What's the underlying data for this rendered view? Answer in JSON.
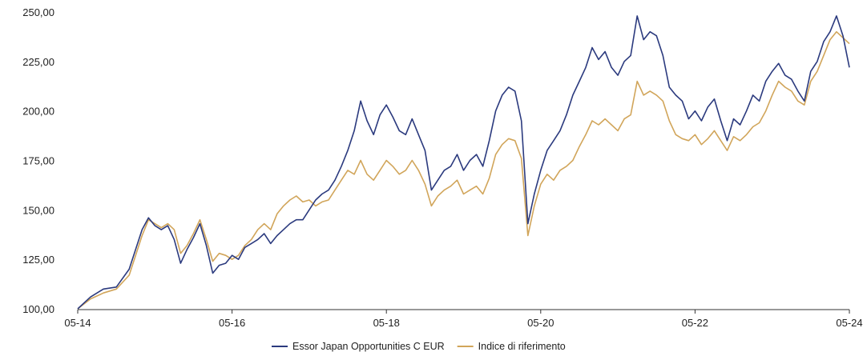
{
  "chart_data": {
    "type": "line",
    "title": "",
    "xlabel": "",
    "ylabel": "",
    "ylim": [
      100,
      250
    ],
    "xlim": [
      "05-14",
      "05-24"
    ],
    "x_ticks": [
      "05-14",
      "05-16",
      "05-18",
      "05-20",
      "05-22",
      "05-24"
    ],
    "y_ticks": [
      "100,00",
      "125,00",
      "150,00",
      "175,00",
      "200,00",
      "225,00",
      "250,00"
    ],
    "grid": false,
    "legend_position": "bottom-center",
    "series": [
      {
        "name": "Essor Japan Opportunities C EUR",
        "color": "#2b3a7e",
        "points": [
          [
            "05-14",
            100
          ],
          [
            "07-14",
            106
          ],
          [
            "09-14",
            110
          ],
          [
            "11-14",
            111
          ],
          [
            "01-15",
            120
          ],
          [
            "03-15",
            140
          ],
          [
            "04-15",
            146
          ],
          [
            "05-15",
            142
          ],
          [
            "06-15",
            140
          ],
          [
            "07-15",
            142
          ],
          [
            "08-15",
            135
          ],
          [
            "09-15",
            123
          ],
          [
            "10-15",
            130
          ],
          [
            "11-15",
            136
          ],
          [
            "12-15",
            143
          ],
          [
            "01-16",
            132
          ],
          [
            "02-16",
            118
          ],
          [
            "03-16",
            122
          ],
          [
            "04-16",
            123
          ],
          [
            "05-16",
            127
          ],
          [
            "06-16",
            125
          ],
          [
            "07-16",
            131
          ],
          [
            "08-16",
            133
          ],
          [
            "09-16",
            135
          ],
          [
            "10-16",
            138
          ],
          [
            "11-16",
            133
          ],
          [
            "12-16",
            137
          ],
          [
            "01-17",
            140
          ],
          [
            "02-17",
            143
          ],
          [
            "03-17",
            145
          ],
          [
            "04-17",
            145
          ],
          [
            "05-17",
            150
          ],
          [
            "06-17",
            155
          ],
          [
            "07-17",
            158
          ],
          [
            "08-17",
            160
          ],
          [
            "09-17",
            165
          ],
          [
            "10-17",
            172
          ],
          [
            "11-17",
            180
          ],
          [
            "12-17",
            190
          ],
          [
            "01-18",
            205
          ],
          [
            "02-18",
            195
          ],
          [
            "03-18",
            188
          ],
          [
            "04-18",
            198
          ],
          [
            "05-18",
            203
          ],
          [
            "06-18",
            197
          ],
          [
            "07-18",
            190
          ],
          [
            "08-18",
            188
          ],
          [
            "09-18",
            196
          ],
          [
            "10-18",
            188
          ],
          [
            "11-18",
            180
          ],
          [
            "12-18",
            160
          ],
          [
            "01-19",
            165
          ],
          [
            "02-19",
            170
          ],
          [
            "03-19",
            172
          ],
          [
            "04-19",
            178
          ],
          [
            "05-19",
            170
          ],
          [
            "06-19",
            175
          ],
          [
            "07-19",
            178
          ],
          [
            "08-19",
            172
          ],
          [
            "09-19",
            185
          ],
          [
            "10-19",
            200
          ],
          [
            "11-19",
            208
          ],
          [
            "12-19",
            212
          ],
          [
            "01-20",
            210
          ],
          [
            "02-20",
            195
          ],
          [
            "03-20",
            143
          ],
          [
            "04-20",
            158
          ],
          [
            "05-20",
            170
          ],
          [
            "06-20",
            180
          ],
          [
            "07-20",
            185
          ],
          [
            "08-20",
            190
          ],
          [
            "09-20",
            198
          ],
          [
            "10-20",
            208
          ],
          [
            "11-20",
            215
          ],
          [
            "12-20",
            222
          ],
          [
            "01-21",
            232
          ],
          [
            "02-21",
            226
          ],
          [
            "03-21",
            230
          ],
          [
            "04-21",
            222
          ],
          [
            "05-21",
            218
          ],
          [
            "06-21",
            225
          ],
          [
            "07-21",
            228
          ],
          [
            "08-21",
            248
          ],
          [
            "09-21",
            236
          ],
          [
            "10-21",
            240
          ],
          [
            "11-21",
            238
          ],
          [
            "12-21",
            228
          ],
          [
            "01-22",
            212
          ],
          [
            "02-22",
            208
          ],
          [
            "03-22",
            205
          ],
          [
            "04-22",
            196
          ],
          [
            "05-22",
            200
          ],
          [
            "06-22",
            195
          ],
          [
            "07-22",
            202
          ],
          [
            "08-22",
            206
          ],
          [
            "09-22",
            195
          ],
          [
            "10-22",
            185
          ],
          [
            "11-22",
            196
          ],
          [
            "12-22",
            193
          ],
          [
            "01-23",
            200
          ],
          [
            "02-23",
            208
          ],
          [
            "03-23",
            205
          ],
          [
            "04-23",
            215
          ],
          [
            "05-23",
            220
          ],
          [
            "06-23",
            224
          ],
          [
            "07-23",
            218
          ],
          [
            "08-23",
            216
          ],
          [
            "09-23",
            210
          ],
          [
            "10-23",
            205
          ],
          [
            "11-23",
            220
          ],
          [
            "12-23",
            225
          ],
          [
            "01-24",
            235
          ],
          [
            "02-24",
            240
          ],
          [
            "03-24",
            248
          ],
          [
            "04-24",
            238
          ],
          [
            "05-24",
            222
          ]
        ]
      },
      {
        "name": "Indice di riferimento",
        "color": "#d1a55a",
        "points": [
          [
            "05-14",
            100
          ],
          [
            "07-14",
            105
          ],
          [
            "09-14",
            108
          ],
          [
            "11-14",
            110
          ],
          [
            "01-15",
            117
          ],
          [
            "03-15",
            137
          ],
          [
            "04-15",
            145
          ],
          [
            "05-15",
            143
          ],
          [
            "06-15",
            141
          ],
          [
            "07-15",
            143
          ],
          [
            "08-15",
            140
          ],
          [
            "09-15",
            128
          ],
          [
            "10-15",
            132
          ],
          [
            "11-15",
            138
          ],
          [
            "12-15",
            145
          ],
          [
            "01-16",
            135
          ],
          [
            "02-16",
            124
          ],
          [
            "03-16",
            128
          ],
          [
            "04-16",
            127
          ],
          [
            "05-16",
            125
          ],
          [
            "06-16",
            127
          ],
          [
            "07-16",
            132
          ],
          [
            "08-16",
            135
          ],
          [
            "09-16",
            140
          ],
          [
            "10-16",
            143
          ],
          [
            "11-16",
            140
          ],
          [
            "12-16",
            148
          ],
          [
            "01-17",
            152
          ],
          [
            "02-17",
            155
          ],
          [
            "03-17",
            157
          ],
          [
            "04-17",
            154
          ],
          [
            "05-17",
            155
          ],
          [
            "06-17",
            152
          ],
          [
            "07-17",
            154
          ],
          [
            "08-17",
            155
          ],
          [
            "09-17",
            160
          ],
          [
            "10-17",
            165
          ],
          [
            "11-17",
            170
          ],
          [
            "12-17",
            168
          ],
          [
            "01-18",
            175
          ],
          [
            "02-18",
            168
          ],
          [
            "03-18",
            165
          ],
          [
            "04-18",
            170
          ],
          [
            "05-18",
            175
          ],
          [
            "06-18",
            172
          ],
          [
            "07-18",
            168
          ],
          [
            "08-18",
            170
          ],
          [
            "09-18",
            175
          ],
          [
            "10-18",
            170
          ],
          [
            "11-18",
            163
          ],
          [
            "12-18",
            152
          ],
          [
            "01-19",
            157
          ],
          [
            "02-19",
            160
          ],
          [
            "03-19",
            162
          ],
          [
            "04-19",
            165
          ],
          [
            "05-19",
            158
          ],
          [
            "06-19",
            160
          ],
          [
            "07-19",
            162
          ],
          [
            "08-19",
            158
          ],
          [
            "09-19",
            166
          ],
          [
            "10-19",
            178
          ],
          [
            "11-19",
            183
          ],
          [
            "12-19",
            186
          ],
          [
            "01-20",
            185
          ],
          [
            "02-20",
            176
          ],
          [
            "03-20",
            137
          ],
          [
            "04-20",
            152
          ],
          [
            "05-20",
            163
          ],
          [
            "06-20",
            168
          ],
          [
            "07-20",
            165
          ],
          [
            "08-20",
            170
          ],
          [
            "09-20",
            172
          ],
          [
            "10-20",
            175
          ],
          [
            "11-20",
            182
          ],
          [
            "12-20",
            188
          ],
          [
            "01-21",
            195
          ],
          [
            "02-21",
            193
          ],
          [
            "03-21",
            196
          ],
          [
            "04-21",
            193
          ],
          [
            "05-21",
            190
          ],
          [
            "06-21",
            196
          ],
          [
            "07-21",
            198
          ],
          [
            "08-21",
            215
          ],
          [
            "09-21",
            208
          ],
          [
            "10-21",
            210
          ],
          [
            "11-21",
            208
          ],
          [
            "12-21",
            205
          ],
          [
            "01-22",
            195
          ],
          [
            "02-22",
            188
          ],
          [
            "03-22",
            186
          ],
          [
            "04-22",
            185
          ],
          [
            "05-22",
            188
          ],
          [
            "06-22",
            183
          ],
          [
            "07-22",
            186
          ],
          [
            "08-22",
            190
          ],
          [
            "09-22",
            185
          ],
          [
            "10-22",
            180
          ],
          [
            "11-22",
            187
          ],
          [
            "12-22",
            185
          ],
          [
            "01-23",
            188
          ],
          [
            "02-23",
            192
          ],
          [
            "03-23",
            194
          ],
          [
            "04-23",
            200
          ],
          [
            "05-23",
            208
          ],
          [
            "06-23",
            215
          ],
          [
            "07-23",
            212
          ],
          [
            "08-23",
            210
          ],
          [
            "09-23",
            205
          ],
          [
            "10-23",
            203
          ],
          [
            "11-23",
            215
          ],
          [
            "12-23",
            220
          ],
          [
            "01-24",
            228
          ],
          [
            "02-24",
            236
          ],
          [
            "03-24",
            240
          ],
          [
            "04-24",
            237
          ],
          [
            "05-24",
            234
          ]
        ]
      }
    ]
  }
}
